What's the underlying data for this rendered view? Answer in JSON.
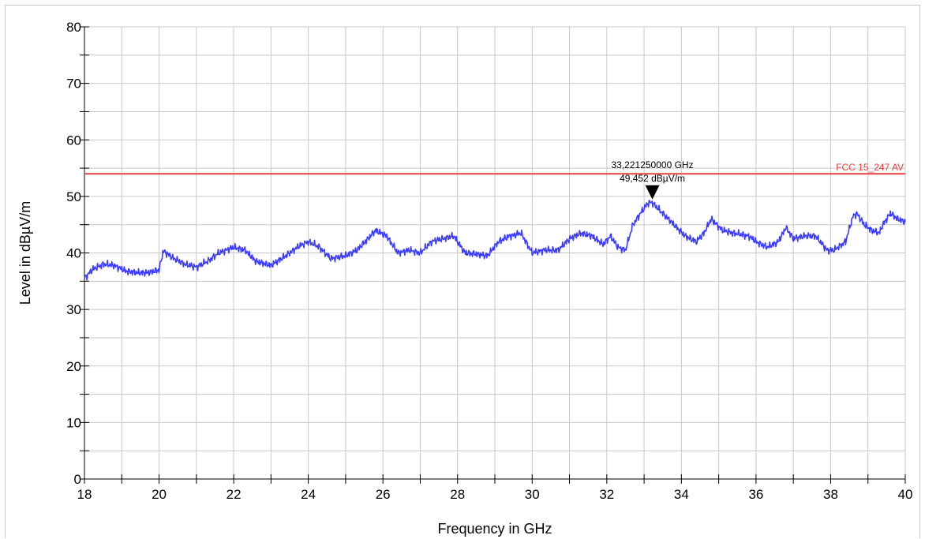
{
  "chart_data": {
    "type": "line",
    "title": "",
    "xlabel": "Frequency in GHz",
    "ylabel": "Level in dBµV/m",
    "xlim": [
      18,
      40
    ],
    "ylim": [
      0,
      80
    ],
    "x_ticks": [
      18,
      20,
      22,
      24,
      26,
      28,
      30,
      32,
      34,
      36,
      38,
      40
    ],
    "y_ticks": [
      0,
      10,
      20,
      30,
      40,
      50,
      60,
      70,
      80
    ],
    "grid": true,
    "colors": {
      "trace": "#3b3bff",
      "limit": "#e84040",
      "grid": "#c8c8c8"
    },
    "limit_line": {
      "name": "FCC 15_247 AV",
      "value": 54.0
    },
    "marker": {
      "x": 33.22125,
      "y": 49.452,
      "freq_label": "33,221250000 GHz",
      "level_label": "49,452 dBµV/m"
    },
    "series": [
      {
        "x": [
          18.0,
          18.2,
          18.5,
          18.8,
          19.1,
          19.4,
          19.7,
          20.0,
          20.1,
          20.12,
          20.4,
          20.7,
          21.0,
          21.3,
          21.6,
          22.0,
          22.3,
          22.6,
          23.0,
          23.4,
          23.7,
          24.0,
          24.3,
          24.6,
          25.0,
          25.3,
          25.6,
          25.8,
          26.1,
          26.4,
          26.7,
          27.0,
          27.3,
          27.6,
          27.9,
          28.2,
          28.5,
          28.8,
          29.1,
          29.4,
          29.7,
          30.0,
          30.3,
          30.7,
          31.0,
          31.3,
          31.6,
          31.9,
          32.1,
          32.3,
          32.5,
          32.7,
          32.9,
          33.1,
          33.2,
          33.5,
          33.8,
          34.1,
          34.4,
          34.6,
          34.8,
          35.1,
          35.4,
          35.8,
          36.0,
          36.3,
          36.6,
          36.8,
          37.0,
          37.3,
          37.6,
          37.9,
          38.1,
          38.4,
          38.6,
          38.7,
          38.9,
          39.1,
          39.3,
          39.4,
          39.6,
          39.8,
          40.0
        ],
        "y": [
          35.5,
          37.0,
          38.0,
          37.8,
          36.8,
          36.5,
          36.5,
          37.0,
          40.0,
          40.3,
          39.0,
          38.0,
          37.5,
          38.5,
          40.0,
          41.0,
          40.5,
          38.5,
          37.8,
          39.5,
          41.0,
          42.0,
          41.0,
          39.0,
          39.5,
          40.5,
          42.5,
          44.0,
          43.0,
          40.0,
          40.5,
          40.0,
          42.0,
          42.5,
          43.0,
          40.0,
          39.8,
          39.5,
          42.0,
          43.0,
          43.5,
          40.0,
          40.5,
          40.5,
          42.5,
          43.5,
          43.0,
          41.5,
          43.0,
          41.0,
          40.5,
          45.0,
          47.0,
          48.8,
          49.0,
          47.0,
          45.0,
          43.0,
          42.0,
          43.5,
          46.0,
          44.0,
          43.5,
          43.0,
          42.0,
          41.0,
          42.0,
          44.5,
          42.5,
          43.0,
          43.0,
          40.5,
          40.5,
          42.0,
          46.5,
          47.0,
          45.0,
          44.0,
          43.5,
          45.0,
          47.0,
          46.0,
          45.5
        ]
      }
    ]
  }
}
